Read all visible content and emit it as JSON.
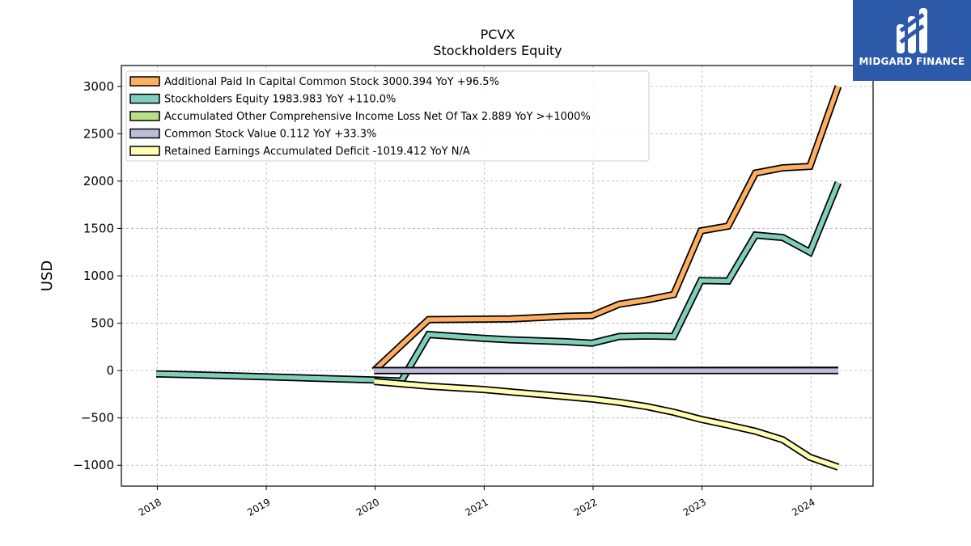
{
  "chart_data": {
    "type": "line",
    "title": "PCVX",
    "subtitle": "Stockholders  Equity",
    "ylabel": "USD",
    "ylim": [
      -1220,
      3220
    ],
    "xlim": [
      2017.67,
      2024.57
    ],
    "yticks": [
      -1000,
      -500,
      0,
      500,
      1000,
      1500,
      2000,
      2500,
      3000
    ],
    "ytick_labels": [
      "−1000",
      "−500",
      "0",
      "500",
      "1000",
      "1500",
      "2000",
      "2500",
      "3000"
    ],
    "xticks": [
      2018,
      2019,
      2020,
      2021,
      2022,
      2023,
      2024
    ],
    "xtick_labels": [
      "2018",
      "2019",
      "2020",
      "2021",
      "2022",
      "2023",
      "2024"
    ],
    "grid": true,
    "legend_position": "top-left",
    "series": [
      {
        "name": "Additional Paid In Capital Common Stock  3000.394 YoY +96.5%",
        "color": "#fdae61",
        "points": [
          [
            2019.99,
            0
          ],
          [
            2020.49,
            538
          ],
          [
            2021.24,
            545
          ],
          [
            2021.74,
            573
          ],
          [
            2021.99,
            580
          ],
          [
            2022.24,
            700
          ],
          [
            2022.49,
            745
          ],
          [
            2022.74,
            803
          ],
          [
            2022.99,
            1475
          ],
          [
            2023.24,
            1525
          ],
          [
            2023.49,
            2085
          ],
          [
            2023.74,
            2140
          ],
          [
            2023.99,
            2155
          ],
          [
            2024.25,
            3000
          ]
        ]
      },
      {
        "name": "Stockholders Equity  1983.983 YoY +110.0%",
        "color": "#7fcdbb",
        "points": [
          [
            2017.99,
            -35
          ],
          [
            2018.99,
            -65
          ],
          [
            2019.99,
            -100
          ],
          [
            2020.24,
            -110
          ],
          [
            2020.49,
            380
          ],
          [
            2020.99,
            340
          ],
          [
            2021.24,
            325
          ],
          [
            2021.74,
            305
          ],
          [
            2021.99,
            290
          ],
          [
            2022.24,
            360
          ],
          [
            2022.49,
            365
          ],
          [
            2022.74,
            360
          ],
          [
            2022.99,
            950
          ],
          [
            2023.24,
            945
          ],
          [
            2023.49,
            1430
          ],
          [
            2023.74,
            1405
          ],
          [
            2023.99,
            1250
          ],
          [
            2024.25,
            1984
          ]
        ]
      },
      {
        "name": "Accumulated Other Comprehensive Income Loss Net Of Tax  2.889 YoY >+1000%",
        "color": "#b8e186",
        "points": [
          [
            2019.99,
            0
          ],
          [
            2024.25,
            3
          ]
        ]
      },
      {
        "name": "Common Stock Value  0.112 YoY +33.3%",
        "color": "#bcbddc",
        "points": [
          [
            2019.99,
            0
          ],
          [
            2024.25,
            0
          ]
        ]
      },
      {
        "name": "Retained Earnings Accumulated Deficit  -1019.412 YoY N/A",
        "color": "#ffffb3",
        "points": [
          [
            2019.99,
            -115
          ],
          [
            2020.49,
            -165
          ],
          [
            2020.99,
            -200
          ],
          [
            2021.24,
            -225
          ],
          [
            2021.49,
            -250
          ],
          [
            2021.74,
            -275
          ],
          [
            2021.99,
            -300
          ],
          [
            2022.24,
            -335
          ],
          [
            2022.49,
            -380
          ],
          [
            2022.74,
            -440
          ],
          [
            2022.99,
            -515
          ],
          [
            2023.24,
            -575
          ],
          [
            2023.49,
            -640
          ],
          [
            2023.74,
            -730
          ],
          [
            2023.99,
            -915
          ],
          [
            2024.25,
            -1019
          ]
        ]
      }
    ]
  },
  "logo": {
    "text": "MIDGARD FINANCE",
    "background": "#2d5aa8"
  }
}
